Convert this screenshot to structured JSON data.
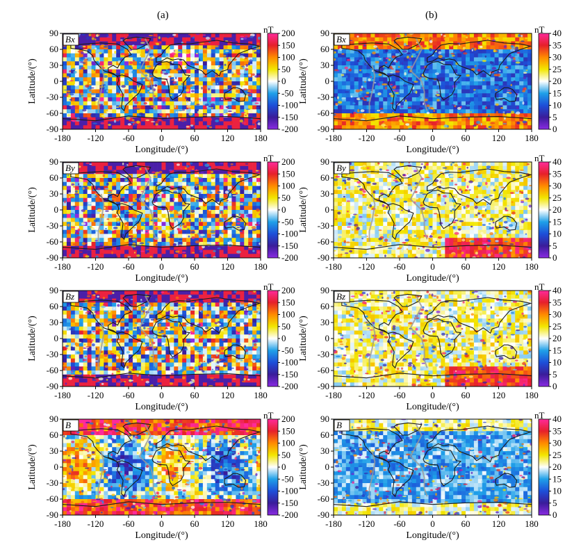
{
  "columns": [
    {
      "label": "(a)"
    },
    {
      "label": "(b)"
    }
  ],
  "chart_data": [
    {
      "type": "heatmap",
      "column": "(a)",
      "panel_label": "Bx",
      "xlabel": "Longitude/(°)",
      "ylabel": "Latitude/(°)",
      "xlim": [
        -180,
        180
      ],
      "ylim": [
        -90,
        90
      ],
      "xticks": [
        "-180",
        "-120",
        "-60",
        "0",
        "60",
        "120",
        "180"
      ],
      "yticks": [
        "90",
        "60",
        "30",
        "0",
        "-30",
        "-60",
        "-90"
      ],
      "colorbar": {
        "unit": "nT",
        "min": -200,
        "max": 200,
        "ticks": [
          "200",
          "150",
          "100",
          "50",
          "0",
          "-50",
          "-100",
          "-150",
          "-200"
        ]
      }
    },
    {
      "type": "heatmap",
      "column": "(a)",
      "panel_label": "By",
      "xlabel": "Longitude/(°)",
      "ylabel": "Latitude/(°)",
      "xlim": [
        -180,
        180
      ],
      "ylim": [
        -90,
        90
      ],
      "xticks": [
        "-180",
        "-120",
        "-60",
        "0",
        "60",
        "120",
        "180"
      ],
      "yticks": [
        "90",
        "60",
        "30",
        "0",
        "-30",
        "-60",
        "-90"
      ],
      "colorbar": {
        "unit": "nT",
        "min": -200,
        "max": 200,
        "ticks": [
          "200",
          "150",
          "100",
          "50",
          "0",
          "-50",
          "-100",
          "-150",
          "-200"
        ]
      }
    },
    {
      "type": "heatmap",
      "column": "(a)",
      "panel_label": "Bz",
      "xlabel": "Longitude/(°)",
      "ylabel": "Latitude/(°)",
      "xlim": [
        -180,
        180
      ],
      "ylim": [
        -90,
        90
      ],
      "xticks": [
        "-180",
        "-120",
        "-60",
        "0",
        "60",
        "120",
        "180"
      ],
      "yticks": [
        "90",
        "60",
        "30",
        "0",
        "-30",
        "-60",
        "-90"
      ],
      "colorbar": {
        "unit": "nT",
        "min": -200,
        "max": 200,
        "ticks": [
          "200",
          "150",
          "100",
          "50",
          "0",
          "-50",
          "-100",
          "-150",
          "-200"
        ]
      }
    },
    {
      "type": "heatmap",
      "column": "(a)",
      "panel_label": "B",
      "xlabel": "Longitude/(°)",
      "ylabel": "Latitude/(°)",
      "xlim": [
        -180,
        180
      ],
      "ylim": [
        -90,
        90
      ],
      "xticks": [
        "-180",
        "-120",
        "-60",
        "0",
        "60",
        "120",
        "180"
      ],
      "yticks": [
        "90",
        "60",
        "30",
        "0",
        "-30",
        "-60",
        "-90"
      ],
      "colorbar": {
        "unit": "nT",
        "min": -200,
        "max": 200,
        "ticks": [
          "200",
          "150",
          "100",
          "50",
          "0",
          "-50",
          "-100",
          "-150",
          "-200"
        ]
      }
    },
    {
      "type": "heatmap",
      "column": "(b)",
      "panel_label": "Bx",
      "xlabel": "Longitude/(°)",
      "ylabel": "Latitude/(°)",
      "xlim": [
        -180,
        180
      ],
      "ylim": [
        -90,
        90
      ],
      "xticks": [
        "-180",
        "-120",
        "-60",
        "0",
        "60",
        "120",
        "180"
      ],
      "yticks": [
        "90",
        "60",
        "30",
        "0",
        "-30",
        "-60",
        "-90"
      ],
      "colorbar": {
        "unit": "nT",
        "min": 0,
        "max": 40,
        "ticks": [
          "40",
          "35",
          "30",
          "25",
          "20",
          "15",
          "10",
          "5",
          "0"
        ]
      }
    },
    {
      "type": "heatmap",
      "column": "(b)",
      "panel_label": "By",
      "xlabel": "Longitude/(°)",
      "ylabel": "Latitude/(°)",
      "xlim": [
        -180,
        180
      ],
      "ylim": [
        -90,
        90
      ],
      "xticks": [
        "-180",
        "-120",
        "-60",
        "0",
        "60",
        "120",
        "180"
      ],
      "yticks": [
        "90",
        "60",
        "30",
        "0",
        "-30",
        "-60",
        "-90"
      ],
      "colorbar": {
        "unit": "nT",
        "min": 0,
        "max": 40,
        "ticks": [
          "40",
          "35",
          "30",
          "25",
          "20",
          "15",
          "10",
          "5",
          "0"
        ]
      }
    },
    {
      "type": "heatmap",
      "column": "(b)",
      "panel_label": "Bz",
      "xlabel": "Longitude/(°)",
      "ylabel": "Latitude/(°)",
      "xlim": [
        -180,
        180
      ],
      "ylim": [
        -90,
        90
      ],
      "xticks": [
        "-180",
        "-120",
        "-60",
        "0",
        "60",
        "120",
        "180"
      ],
      "yticks": [
        "90",
        "60",
        "30",
        "0",
        "-30",
        "-60",
        "-90"
      ],
      "colorbar": {
        "unit": "nT",
        "min": 0,
        "max": 40,
        "ticks": [
          "40",
          "35",
          "30",
          "25",
          "20",
          "15",
          "10",
          "5",
          "0"
        ]
      }
    },
    {
      "type": "heatmap",
      "column": "(b)",
      "panel_label": "B",
      "xlabel": "Longitude/(°)",
      "ylabel": "Latitude/(°)",
      "xlim": [
        -180,
        180
      ],
      "ylim": [
        -90,
        90
      ],
      "xticks": [
        "-180",
        "-120",
        "-60",
        "0",
        "60",
        "120",
        "180"
      ],
      "yticks": [
        "90",
        "60",
        "30",
        "0",
        "-30",
        "-60",
        "-90"
      ],
      "colorbar": {
        "unit": "nT",
        "min": 0,
        "max": 40,
        "ticks": [
          "40",
          "35",
          "30",
          "25",
          "20",
          "15",
          "10",
          "5",
          "0"
        ]
      }
    }
  ],
  "colorscale": [
    "#8a2be2",
    "#3a1c9a",
    "#1d4fd8",
    "#1fa0e8",
    "#ffffff",
    "#f2e600",
    "#ff8a00",
    "#e6202a",
    "#ff2a9a"
  ]
}
